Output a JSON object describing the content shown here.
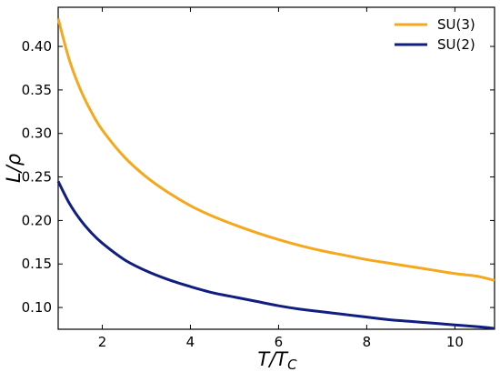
{
  "chart_data": {
    "type": "line",
    "xlabel": "T/T_C",
    "ylabel": "L/ρ",
    "xlabel_parts": {
      "main": "T/T",
      "sub": "C"
    },
    "xlim": [
      1.0,
      10.9
    ],
    "ylim": [
      0.075,
      0.445
    ],
    "xticks": [
      2,
      4,
      6,
      8,
      10
    ],
    "yticks": [
      0.1,
      0.15,
      0.2,
      0.25,
      0.3,
      0.35,
      0.4
    ],
    "xtick_labels": [
      "2",
      "4",
      "6",
      "8",
      "10"
    ],
    "ytick_labels": [
      "0.10",
      "0.15",
      "0.20",
      "0.25",
      "0.30",
      "0.35",
      "0.40"
    ],
    "grid": false,
    "legend": "top-right",
    "series": [
      {
        "name": "SU(3)",
        "color": "#f5a81c",
        "x": [
          1.0,
          1.25,
          1.5,
          1.75,
          2.0,
          2.5,
          3.0,
          3.5,
          4.0,
          4.5,
          5.0,
          5.5,
          6.0,
          6.5,
          7.0,
          7.5,
          8.0,
          8.5,
          9.0,
          9.5,
          10.0,
          10.5,
          10.9
        ],
        "y": [
          0.432,
          0.385,
          0.351,
          0.325,
          0.304,
          0.273,
          0.25,
          0.232,
          0.217,
          0.205,
          0.195,
          0.186,
          0.178,
          0.171,
          0.165,
          0.16,
          0.155,
          0.151,
          0.147,
          0.143,
          0.139,
          0.136,
          0.131
        ]
      },
      {
        "name": "SU(2)",
        "color": "#101e80",
        "x": [
          1.0,
          1.25,
          1.5,
          1.75,
          2.0,
          2.5,
          3.0,
          3.5,
          4.0,
          4.5,
          5.0,
          5.5,
          6.0,
          6.5,
          7.0,
          7.5,
          8.0,
          8.5,
          9.0,
          9.5,
          10.0,
          10.5,
          10.9
        ],
        "y": [
          0.245,
          0.22,
          0.201,
          0.186,
          0.174,
          0.155,
          0.142,
          0.132,
          0.124,
          0.117,
          0.112,
          0.107,
          0.102,
          0.098,
          0.095,
          0.092,
          0.089,
          0.086,
          0.084,
          0.082,
          0.08,
          0.078,
          0.076
        ]
      }
    ]
  }
}
